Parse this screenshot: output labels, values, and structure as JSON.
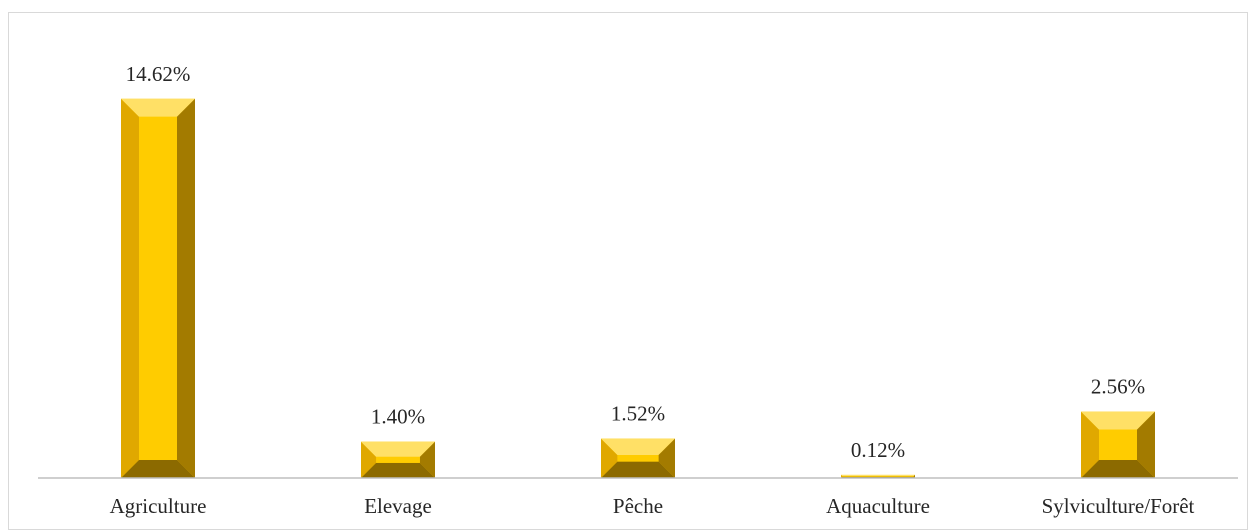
{
  "chart_data": {
    "type": "bar",
    "title": "",
    "xlabel": "",
    "ylabel": "",
    "categories": [
      "Agriculture",
      "Elevage",
      "Pêche",
      "Aquaculture",
      "Sylviculture/Forêt"
    ],
    "values": [
      14.62,
      1.4,
      1.52,
      0.12,
      2.56
    ],
    "data_labels": [
      "14.62%",
      "1.40%",
      "1.52%",
      "0.12%",
      "2.56%"
    ],
    "unit": "%",
    "ylim": [
      0,
      16
    ],
    "grid": false,
    "legend": "none",
    "colors": {
      "bar_face": "#FFCC00",
      "bar_left_bevel": "#E0A800",
      "bar_top_bevel": "#FFE066",
      "bar_right_bevel": "#A37B00",
      "bar_bottom_bevel": "#8C6A00",
      "axis": "#bfbfbf",
      "text": "#262626"
    }
  }
}
